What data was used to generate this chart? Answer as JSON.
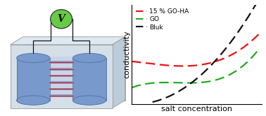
{
  "chart": {
    "title_x": "salt concentration",
    "title_y": "conductivity",
    "curves": {
      "goha": {
        "label": "15 % GO-HA",
        "color": "#ee1111"
      },
      "go": {
        "label": "GO",
        "color": "#22aa22"
      },
      "bulk": {
        "label": "Bluk",
        "color": "#111111"
      }
    },
    "legend_fontsize": 6.5,
    "axis_label_fontsize": 8.0
  },
  "illustration": {
    "box_face_color": "#d4dfe8",
    "box_top_color": "#dde8f0",
    "box_right_color": "#bcccd8",
    "box_edge_color": "#999999",
    "cylinder_face_color": "#7799cc",
    "cylinder_edge_color": "#5577aa",
    "membrane_face_color": "#8899cc",
    "membrane_line_color": "#cc2222",
    "voltmeter_face_color": "#66cc44",
    "voltmeter_edge_color": "#333333",
    "wire_color": "#111111",
    "voltmeter_label": "V"
  }
}
